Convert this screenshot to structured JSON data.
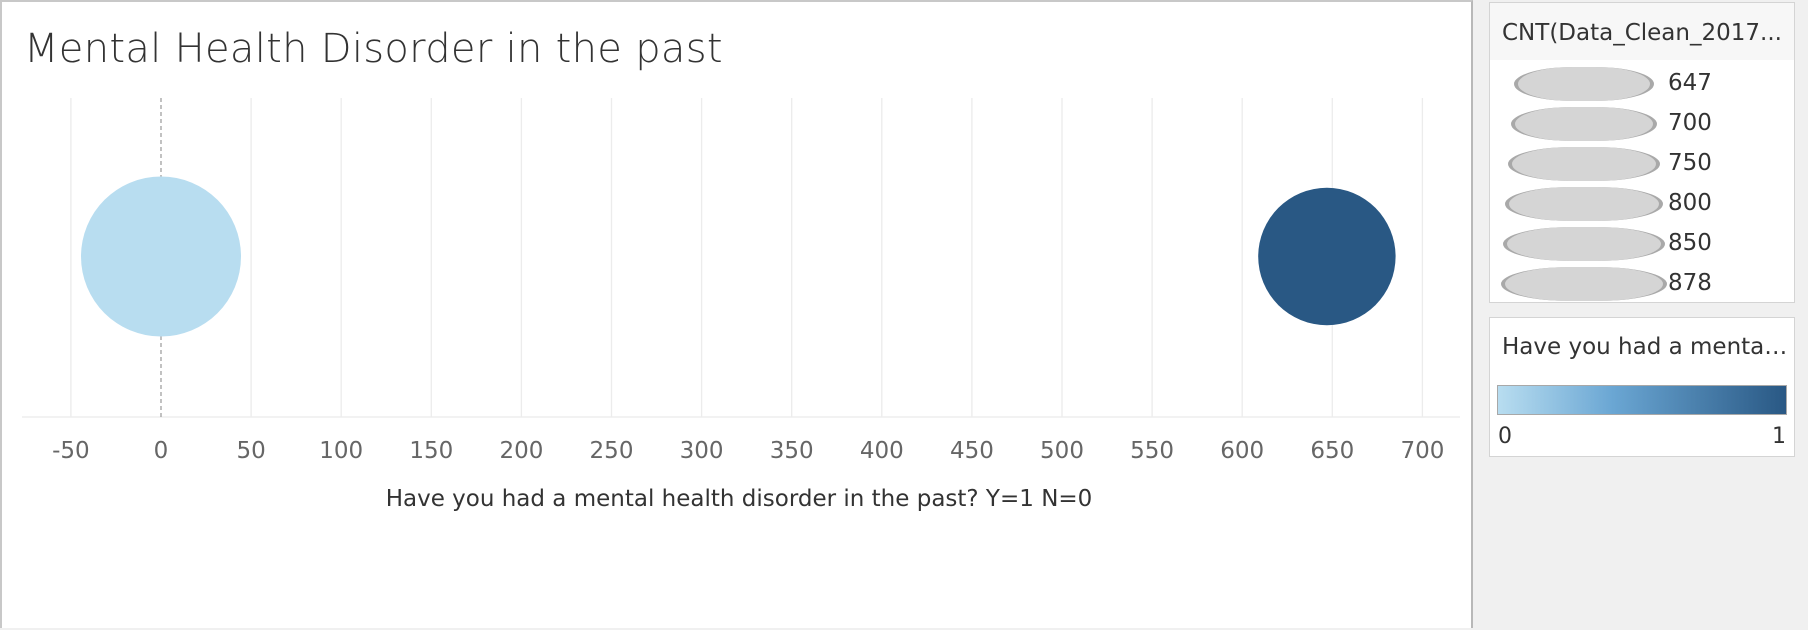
{
  "chart_data": {
    "type": "scatter",
    "title": "Mental Health Disorder in the past",
    "xlabel": "Have you had a mental health disorder in the past?  Y=1 N=0",
    "ylabel": "",
    "xlim": [
      -75,
      720
    ],
    "x_ticks": [
      "-50",
      "0",
      "50",
      "100",
      "150",
      "200",
      "250",
      "300",
      "350",
      "400",
      "450",
      "500",
      "550",
      "600",
      "650",
      "700"
    ],
    "grid": true,
    "points": [
      {
        "x": 0,
        "size": 878,
        "color_value": 0,
        "color": "#b8ddf0"
      },
      {
        "x": 647,
        "size": 647,
        "color_value": 1,
        "color": "#295884"
      }
    ],
    "size_legend": {
      "title": "CNT(Data_Clean_2017...",
      "values": [
        "647",
        "700",
        "750",
        "800",
        "850",
        "878"
      ]
    },
    "color_legend": {
      "title": "Have you had a mental ...",
      "min_label": "0",
      "max_label": "1",
      "color_low": "#b8ddf0",
      "color_high": "#295884"
    }
  }
}
